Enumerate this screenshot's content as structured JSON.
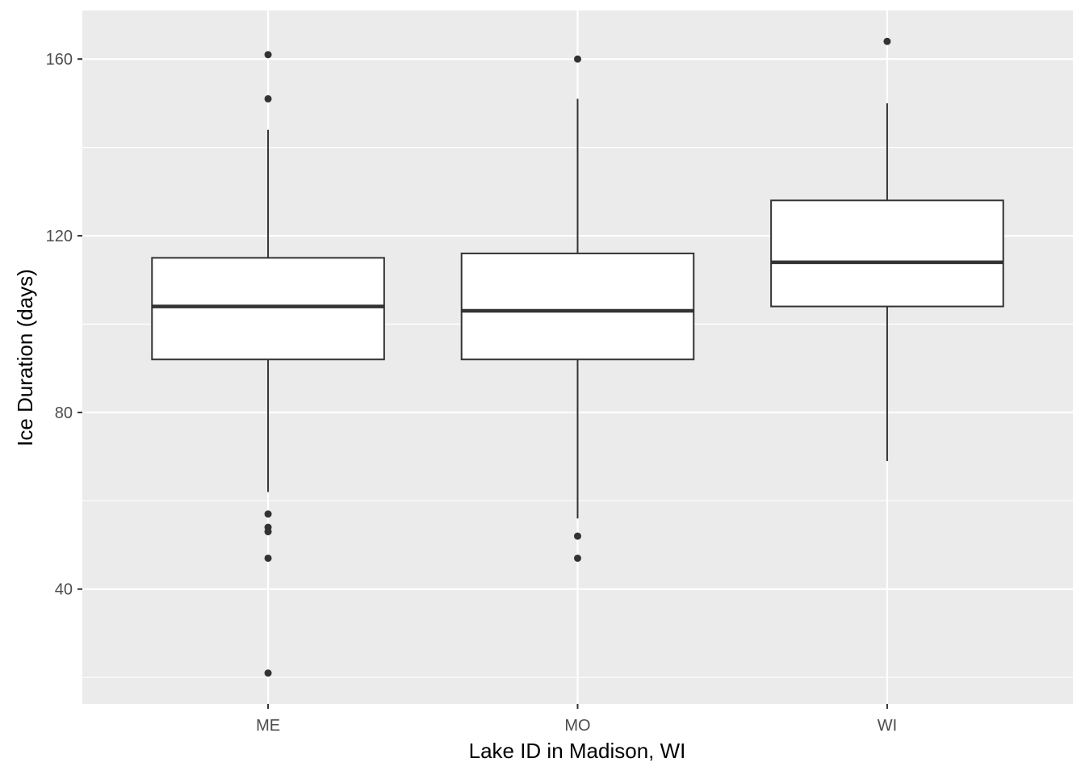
{
  "chart_data": {
    "type": "boxplot",
    "title": "",
    "xlabel": "Lake ID in Madison, WI",
    "ylabel": "Ice Duration (days)",
    "categories": [
      "ME",
      "MO",
      "WI"
    ],
    "ylim": [
      14,
      171
    ],
    "y_ticks": [
      40,
      80,
      120,
      160
    ],
    "y_tick_labels": [
      "40",
      "80",
      "120",
      "160"
    ],
    "grid": true,
    "legend": "none",
    "boxes": [
      {
        "category": "ME",
        "lower_whisker": 62,
        "q1": 92,
        "median": 104,
        "q3": 115,
        "upper_whisker": 144,
        "outliers": [
          161,
          151,
          57,
          54,
          53,
          47,
          21
        ]
      },
      {
        "category": "MO",
        "lower_whisker": 56,
        "q1": 92,
        "median": 103,
        "q3": 116,
        "upper_whisker": 151,
        "outliers": [
          160,
          52,
          47
        ]
      },
      {
        "category": "WI",
        "lower_whisker": 69,
        "q1": 104,
        "median": 114,
        "q3": 128,
        "upper_whisker": 150,
        "outliers": [
          164
        ]
      }
    ],
    "colors": {
      "panel": "#ebebeb",
      "grid": "#ffffff",
      "box_fill": "#ffffff",
      "box_line": "#333333"
    }
  }
}
